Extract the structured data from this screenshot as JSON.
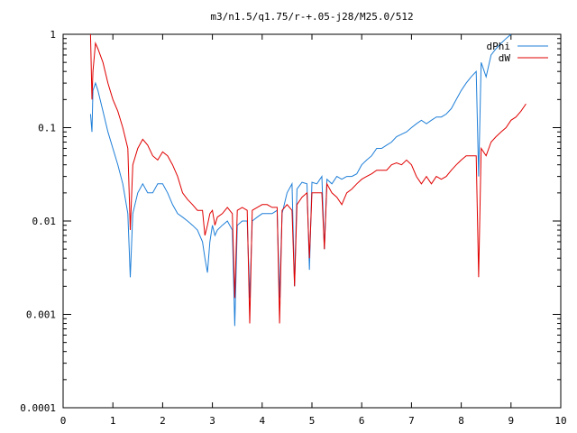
{
  "chart_data": {
    "type": "line",
    "title": "m3/n1.5/q1.75/r-+.05-j28/M25.0/512",
    "xlabel": "",
    "ylabel": "",
    "xlim": [
      0,
      10
    ],
    "ylim": [
      0.0001,
      1
    ],
    "yscale": "log",
    "legend_position": "top-right",
    "x_ticks": [
      "0",
      "1",
      "2",
      "3",
      "4",
      "5",
      "6",
      "7",
      "8",
      "9",
      "10"
    ],
    "y_ticks": [
      "1",
      "0.1",
      "0.01",
      "0.001",
      "0.0001"
    ],
    "series": [
      {
        "name": "dPhi",
        "color": "#1f7fd8",
        "x": [
          0.55,
          0.58,
          0.6,
          0.65,
          0.7,
          0.8,
          0.9,
          1.0,
          1.1,
          1.2,
          1.3,
          1.35,
          1.4,
          1.5,
          1.6,
          1.7,
          1.8,
          1.9,
          2.0,
          2.1,
          2.2,
          2.3,
          2.4,
          2.5,
          2.6,
          2.7,
          2.8,
          2.85,
          2.9,
          2.95,
          3.0,
          3.05,
          3.1,
          3.2,
          3.3,
          3.4,
          3.45,
          3.5,
          3.6,
          3.7,
          3.75,
          3.8,
          3.9,
          4.0,
          4.1,
          4.2,
          4.3,
          4.35,
          4.4,
          4.5,
          4.6,
          4.65,
          4.7,
          4.8,
          4.9,
          4.95,
          5.0,
          5.1,
          5.2,
          5.25,
          5.3,
          5.4,
          5.5,
          5.6,
          5.7,
          5.8,
          5.9,
          6.0,
          6.1,
          6.2,
          6.3,
          6.4,
          6.5,
          6.6,
          6.7,
          6.8,
          6.9,
          7.0,
          7.1,
          7.2,
          7.3,
          7.4,
          7.5,
          7.6,
          7.7,
          7.8,
          7.9,
          8.0,
          8.1,
          8.2,
          8.3,
          8.35,
          8.4,
          8.5,
          8.6,
          8.7,
          8.8,
          8.9,
          9.0
        ],
        "y": [
          0.14,
          0.09,
          0.25,
          0.3,
          0.25,
          0.15,
          0.09,
          0.06,
          0.04,
          0.025,
          0.012,
          0.0025,
          0.012,
          0.02,
          0.025,
          0.02,
          0.02,
          0.025,
          0.025,
          0.02,
          0.015,
          0.012,
          0.011,
          0.01,
          0.009,
          0.008,
          0.006,
          0.004,
          0.0028,
          0.006,
          0.009,
          0.007,
          0.008,
          0.009,
          0.01,
          0.008,
          0.00075,
          0.009,
          0.01,
          0.01,
          0.0015,
          0.01,
          0.011,
          0.012,
          0.012,
          0.012,
          0.013,
          0.0015,
          0.012,
          0.02,
          0.025,
          0.002,
          0.022,
          0.026,
          0.025,
          0.003,
          0.026,
          0.025,
          0.03,
          0.005,
          0.028,
          0.025,
          0.03,
          0.028,
          0.03,
          0.03,
          0.032,
          0.04,
          0.045,
          0.05,
          0.06,
          0.06,
          0.065,
          0.07,
          0.08,
          0.085,
          0.09,
          0.1,
          0.11,
          0.12,
          0.11,
          0.12,
          0.13,
          0.13,
          0.14,
          0.16,
          0.2,
          0.25,
          0.3,
          0.35,
          0.4,
          0.03,
          0.5,
          0.35,
          0.6,
          0.7,
          0.8,
          0.9,
          1.0
        ]
      },
      {
        "name": "dW",
        "color": "#e00000",
        "x": [
          0.55,
          0.58,
          0.6,
          0.65,
          0.7,
          0.8,
          0.9,
          1.0,
          1.1,
          1.2,
          1.3,
          1.35,
          1.4,
          1.5,
          1.6,
          1.7,
          1.8,
          1.9,
          2.0,
          2.1,
          2.2,
          2.3,
          2.4,
          2.5,
          2.6,
          2.7,
          2.8,
          2.85,
          2.9,
          2.95,
          3.0,
          3.05,
          3.1,
          3.2,
          3.3,
          3.4,
          3.45,
          3.5,
          3.6,
          3.7,
          3.75,
          3.8,
          3.9,
          4.0,
          4.1,
          4.2,
          4.3,
          4.35,
          4.4,
          4.5,
          4.6,
          4.65,
          4.7,
          4.8,
          4.9,
          4.95,
          5.0,
          5.1,
          5.2,
          5.25,
          5.3,
          5.4,
          5.5,
          5.6,
          5.7,
          5.8,
          5.9,
          6.0,
          6.1,
          6.2,
          6.3,
          6.4,
          6.5,
          6.6,
          6.7,
          6.8,
          6.9,
          7.0,
          7.1,
          7.2,
          7.3,
          7.4,
          7.5,
          7.6,
          7.7,
          7.8,
          7.9,
          8.0,
          8.1,
          8.2,
          8.3,
          8.35,
          8.4,
          8.5,
          8.6,
          8.7,
          8.8,
          8.9,
          9.0,
          9.1,
          9.2,
          9.3
        ],
        "y": [
          1.0,
          0.2,
          0.4,
          0.8,
          0.7,
          0.5,
          0.3,
          0.2,
          0.15,
          0.1,
          0.06,
          0.008,
          0.04,
          0.06,
          0.075,
          0.065,
          0.05,
          0.045,
          0.055,
          0.05,
          0.04,
          0.03,
          0.02,
          0.017,
          0.015,
          0.013,
          0.013,
          0.007,
          0.009,
          0.012,
          0.013,
          0.009,
          0.011,
          0.012,
          0.014,
          0.012,
          0.0015,
          0.013,
          0.014,
          0.013,
          0.0008,
          0.013,
          0.014,
          0.015,
          0.015,
          0.014,
          0.014,
          0.0008,
          0.013,
          0.015,
          0.013,
          0.002,
          0.015,
          0.018,
          0.02,
          0.004,
          0.02,
          0.02,
          0.02,
          0.005,
          0.025,
          0.02,
          0.018,
          0.015,
          0.02,
          0.022,
          0.025,
          0.028,
          0.03,
          0.032,
          0.035,
          0.035,
          0.035,
          0.04,
          0.042,
          0.04,
          0.045,
          0.04,
          0.03,
          0.025,
          0.03,
          0.025,
          0.03,
          0.028,
          0.03,
          0.035,
          0.04,
          0.045,
          0.05,
          0.05,
          0.05,
          0.0025,
          0.06,
          0.05,
          0.07,
          0.08,
          0.09,
          0.1,
          0.12,
          0.13,
          0.15,
          0.18
        ]
      }
    ]
  }
}
